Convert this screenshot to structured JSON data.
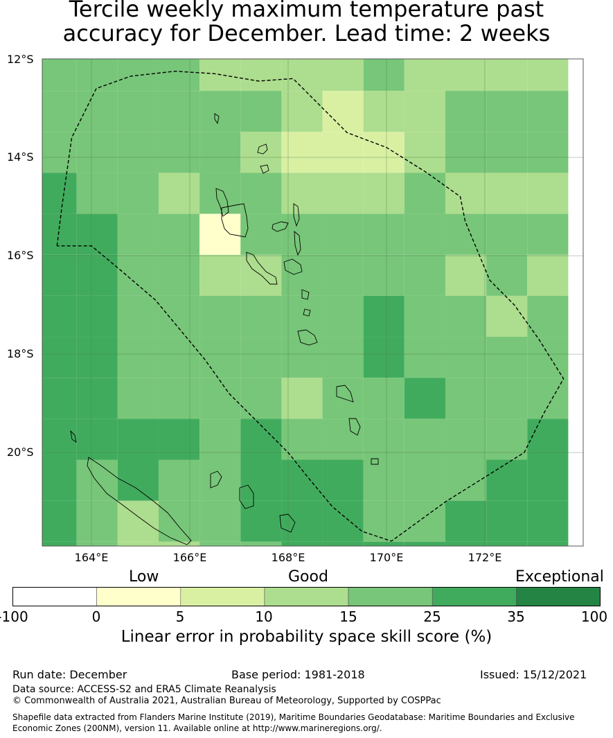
{
  "title_line1": "Tercile weekly maximum temperature past",
  "title_line2": "accuracy for December. Lead time: 2 weeks",
  "map": {
    "lat_labels": [
      "12°S",
      "14°S",
      "16°S",
      "18°S",
      "20°S"
    ],
    "lon_labels": [
      "164°E",
      "166°E",
      "168°E",
      "170°E",
      "172°E"
    ],
    "lat_range": [
      -21.9,
      -12.0
    ],
    "lon_range": [
      163.0,
      174.0
    ],
    "cell_size_deg": 0.833,
    "skill_grid_colors": [
      [
        "#78c679",
        "#78c679",
        "#78c679",
        "#78c679",
        "#addd8e",
        "#addd8e",
        "#addd8e",
        "#addd8e",
        "#78c679",
        "#addd8e",
        "#addd8e",
        "#addd8e",
        "#addd8e"
      ],
      [
        "#78c679",
        "#78c679",
        "#78c679",
        "#78c679",
        "#78c679",
        "#78c679",
        "#addd8e",
        "#d9f0a3",
        "#addd8e",
        "#addd8e",
        "#78c679",
        "#78c679",
        "#78c679"
      ],
      [
        "#78c679",
        "#78c679",
        "#78c679",
        "#78c679",
        "#78c679",
        "#addd8e",
        "#d9f0a3",
        "#d9f0a3",
        "#d9f0a3",
        "#addd8e",
        "#78c679",
        "#78c679",
        "#78c679"
      ],
      [
        "#41ab5d",
        "#78c679",
        "#78c679",
        "#addd8e",
        "#78c679",
        "#78c679",
        "#addd8e",
        "#addd8e",
        "#addd8e",
        "#78c679",
        "#addd8e",
        "#addd8e",
        "#addd8e"
      ],
      [
        "#41ab5d",
        "#41ab5d",
        "#78c679",
        "#78c679",
        "#ffffcc",
        "#78c679",
        "#78c679",
        "#78c679",
        "#78c679",
        "#78c679",
        "#78c679",
        "#78c679",
        "#78c679"
      ],
      [
        "#41ab5d",
        "#41ab5d",
        "#78c679",
        "#78c679",
        "#addd8e",
        "#addd8e",
        "#78c679",
        "#78c679",
        "#78c679",
        "#78c679",
        "#addd8e",
        "#78c679",
        "#addd8e"
      ],
      [
        "#41ab5d",
        "#41ab5d",
        "#78c679",
        "#78c679",
        "#78c679",
        "#78c679",
        "#78c679",
        "#78c679",
        "#41ab5d",
        "#78c679",
        "#78c679",
        "#addd8e",
        "#78c679"
      ],
      [
        "#41ab5d",
        "#41ab5d",
        "#78c679",
        "#78c679",
        "#78c679",
        "#78c679",
        "#78c679",
        "#78c679",
        "#41ab5d",
        "#78c679",
        "#78c679",
        "#78c679",
        "#78c679"
      ],
      [
        "#41ab5d",
        "#41ab5d",
        "#78c679",
        "#78c679",
        "#78c679",
        "#78c679",
        "#addd8e",
        "#78c679",
        "#78c679",
        "#41ab5d",
        "#78c679",
        "#78c679",
        "#78c679"
      ],
      [
        "#41ab5d",
        "#41ab5d",
        "#41ab5d",
        "#41ab5d",
        "#78c679",
        "#41ab5d",
        "#78c679",
        "#78c679",
        "#78c679",
        "#78c679",
        "#78c679",
        "#78c679",
        "#41ab5d"
      ],
      [
        "#41ab5d",
        "#78c679",
        "#41ab5d",
        "#78c679",
        "#78c679",
        "#41ab5d",
        "#41ab5d",
        "#41ab5d",
        "#78c679",
        "#78c679",
        "#78c679",
        "#41ab5d",
        "#41ab5d"
      ],
      [
        "#41ab5d",
        "#78c679",
        "#addd8e",
        "#78c679",
        "#78c679",
        "#41ab5d",
        "#41ab5d",
        "#41ab5d",
        "#78c679",
        "#78c679",
        "#41ab5d",
        "#41ab5d",
        "#41ab5d"
      ],
      [
        "#41ab5d",
        "#78c679",
        "#addd8e",
        "#addd8e",
        "#78c679",
        "#78c679",
        "#41ab5d",
        "#41ab5d",
        "#41ab5d",
        "#41ab5d",
        "#41ab5d",
        "#41ab5d",
        "#41ab5d"
      ]
    ],
    "eez_boundary": [
      [
        163.3,
        -15.8
      ],
      [
        163.4,
        -15.0
      ],
      [
        163.6,
        -13.6
      ],
      [
        164.1,
        -12.6
      ],
      [
        164.8,
        -12.35
      ],
      [
        165.7,
        -12.25
      ],
      [
        166.5,
        -12.3
      ],
      [
        167.4,
        -12.45
      ],
      [
        168.1,
        -12.4
      ],
      [
        168.6,
        -12.9
      ],
      [
        169.2,
        -13.5
      ],
      [
        170.0,
        -13.8
      ],
      [
        170.8,
        -14.3
      ],
      [
        171.5,
        -14.8
      ],
      [
        171.6,
        -15.3
      ],
      [
        172.1,
        -16.5
      ],
      [
        172.6,
        -17.0
      ],
      [
        173.1,
        -17.7
      ],
      [
        173.6,
        -18.5
      ],
      [
        173.2,
        -19.2
      ],
      [
        172.8,
        -20.0
      ],
      [
        172.0,
        -20.5
      ],
      [
        171.2,
        -21.0
      ],
      [
        170.1,
        -21.8
      ],
      [
        169.5,
        -21.6
      ],
      [
        168.9,
        -21.1
      ],
      [
        168.4,
        -20.5
      ],
      [
        168.0,
        -20.0
      ],
      [
        167.4,
        -19.4
      ],
      [
        166.8,
        -18.8
      ],
      [
        166.3,
        -18.1
      ],
      [
        165.8,
        -17.5
      ],
      [
        165.3,
        -16.9
      ],
      [
        164.6,
        -16.3
      ],
      [
        164.0,
        -15.8
      ],
      [
        163.3,
        -15.8
      ]
    ]
  },
  "colorbar": {
    "categories": [
      "Low",
      "Good",
      "Exceptional"
    ],
    "ticks": [
      "-100",
      "0",
      "5",
      "10",
      "15",
      "25",
      "35",
      "100"
    ],
    "colors": [
      "#ffffff",
      "#ffffcc",
      "#d9f0a3",
      "#addd8e",
      "#78c679",
      "#41ab5d",
      "#238443"
    ],
    "label": "Linear error in probability space skill score (%)"
  },
  "footer": {
    "run_date": "Run date: December",
    "base_period": "Base period: 1981-2018",
    "issued": "Issued: 15/12/2021",
    "data_source": "Data source: ACCESS-S2 and ERA5 Climate Reanalysis",
    "copyright": "© Commonwealth of Australia 2021, Australian Bureau of Meteorology, Supported by COSPPac",
    "shapefile_line1": "Shapefile data extracted from Flanders Marine Institute (2019), Maritime Boundaries Geodatabase: Maritime Boundaries and Exclusive",
    "shapefile_line2": "Economic Zones (200NM), version 11. Available online at http://www.marineregions.org/."
  }
}
